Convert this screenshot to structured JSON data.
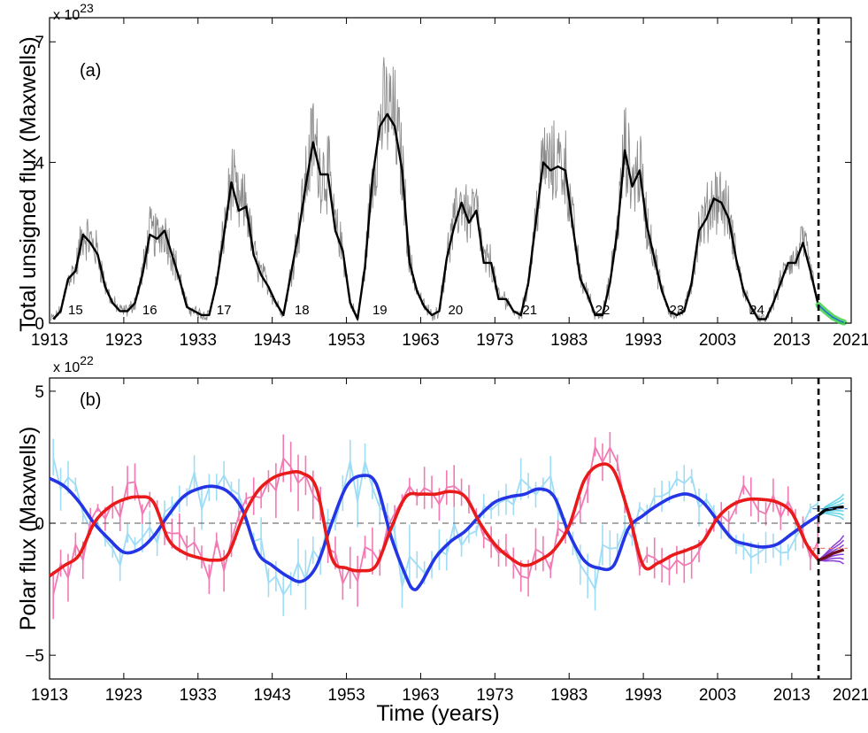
{
  "figure": {
    "xlabel": "Time (years)",
    "xticks": [
      "1913",
      "1923",
      "1933",
      "1943",
      "1953",
      "1963",
      "1973",
      "1983",
      "1993",
      "2003",
      "2013",
      "2021"
    ],
    "xlim": [
      1913,
      2021
    ],
    "divider_year": 2016.6
  },
  "chart_data": [
    {
      "type": "line",
      "panel_label": "(a)",
      "title": "",
      "xlabel": "",
      "ylabel": "Total unsigned flux (Maxwells)",
      "scale_base": "x 10",
      "scale_exp": "23",
      "ylim": [
        0,
        7.6
      ],
      "yticks": [
        "0",
        "4",
        "7"
      ],
      "ytick_values": [
        0,
        4,
        7
      ],
      "series": [
        {
          "name": "Smoothed total unsigned flux",
          "color": "#000000",
          "x": [
            1913.5,
            1914.5,
            1915.5,
            1916.5,
            1917.5,
            1918.5,
            1919.5,
            1920.5,
            1921.5,
            1922.5,
            1923.5,
            1924.5,
            1925.5,
            1926.5,
            1927.5,
            1928.5,
            1929.5,
            1930.5,
            1931.5,
            1932.5,
            1933.5,
            1934.5,
            1935.5,
            1936.5,
            1937.5,
            1938.5,
            1939.5,
            1940.5,
            1941.5,
            1942.5,
            1943.5,
            1944.5,
            1945.5,
            1946.5,
            1947.5,
            1948.5,
            1949.5,
            1950.5,
            1951.5,
            1952.5,
            1953.5,
            1954.5,
            1955.5,
            1956.5,
            1957.5,
            1958.5,
            1959.5,
            1960.5,
            1961.5,
            1962.5,
            1963.5,
            1964.5,
            1965.5,
            1966.5,
            1967.5,
            1968.5,
            1969.5,
            1970.5,
            1971.5,
            1972.5,
            1973.5,
            1974.5,
            1975.5,
            1976.5,
            1977.5,
            1978.5,
            1979.5,
            1980.5,
            1981.5,
            1982.5,
            1983.5,
            1984.5,
            1985.5,
            1986.5,
            1987.5,
            1988.5,
            1989.5,
            1990.5,
            1991.5,
            1992.5,
            1993.5,
            1994.5,
            1995.5,
            1996.5,
            1997.5,
            1998.5,
            1999.5,
            2000.5,
            2001.5,
            2002.5,
            2003.5,
            2004.5,
            2005.5,
            2006.5,
            2007.5,
            2008.5,
            2009.5,
            2010.5,
            2011.5,
            2012.5,
            2013.5,
            2014.5,
            2015.5,
            2016.5
          ],
          "y": [
            0.1,
            0.3,
            1.1,
            1.3,
            2.2,
            2.0,
            1.7,
            0.9,
            0.5,
            0.3,
            0.3,
            0.5,
            1.2,
            2.2,
            2.1,
            2.3,
            1.7,
            1.1,
            0.4,
            0.3,
            0.2,
            0.2,
            1.0,
            2.2,
            3.5,
            2.8,
            2.9,
            1.7,
            1.2,
            0.9,
            0.5,
            0.2,
            1.2,
            2.2,
            3.4,
            4.5,
            3.7,
            3.7,
            2.3,
            1.8,
            0.5,
            0.1,
            1.4,
            3.6,
            4.9,
            5.2,
            4.9,
            3.8,
            1.5,
            0.8,
            0.4,
            0.2,
            0.3,
            1.6,
            2.4,
            3.0,
            2.5,
            2.8,
            1.5,
            1.5,
            0.6,
            0.6,
            0.3,
            0.2,
            1.0,
            2.5,
            4.0,
            3.8,
            3.9,
            3.8,
            2.4,
            1.1,
            0.7,
            0.2,
            0.2,
            1.0,
            2.3,
            4.3,
            3.4,
            3.8,
            2.4,
            1.6,
            0.8,
            0.3,
            0.2,
            0.3,
            1.0,
            2.3,
            2.6,
            3.1,
            3.0,
            2.6,
            1.6,
            0.8,
            0.4,
            0.1,
            0.1,
            0.5,
            1.0,
            1.5,
            1.5,
            2.0,
            1.3,
            0.5
          ]
        },
        {
          "name": "Monthly total unsigned flux",
          "color": "#8c8c8c",
          "note": "noisy monthly values following the smoothed curve"
        },
        {
          "name": "Forecast",
          "color": "#3fd04a",
          "x": [
            2016.6,
            2017.5,
            2018.5,
            2019.5,
            2020.0
          ],
          "y": [
            0.45,
            0.3,
            0.15,
            0.05,
            0.02
          ]
        }
      ],
      "cycle_labels": [
        "15",
        "16",
        "17",
        "18",
        "19",
        "20",
        "21",
        "22",
        "23",
        "24"
      ],
      "cycle_label_years": [
        1916.5,
        1926.5,
        1936.5,
        1947.0,
        1957.5,
        1967.7,
        1977.7,
        1987.5,
        1997.5,
        2008.3
      ]
    },
    {
      "type": "line",
      "panel_label": "(b)",
      "title": "",
      "xlabel": "Time (years)",
      "ylabel": "Polar flux (Maxwells)",
      "scale_base": "x 10",
      "scale_exp": "22",
      "ylim": [
        -5.9,
        5.5
      ],
      "yticks": [
        "5",
        "0",
        "−5"
      ],
      "ytick_values": [
        5,
        0,
        -5
      ],
      "series": [
        {
          "name": "Northern polar flux (smoothed)",
          "color": "#2435e6",
          "x": [
            1913,
            1915,
            1917,
            1919,
            1921,
            1923,
            1925,
            1927,
            1929,
            1931,
            1933,
            1935,
            1937,
            1939,
            1941,
            1943,
            1945,
            1947,
            1949,
            1951,
            1953,
            1955,
            1957,
            1959,
            1961,
            1962,
            1963,
            1965,
            1967,
            1969,
            1971,
            1973,
            1975,
            1977,
            1979,
            1981,
            1983,
            1985,
            1987,
            1989,
            1991,
            1993,
            1995,
            1997,
            1999,
            2001,
            2003,
            2005,
            2007,
            2009,
            2011,
            2013,
            2015,
            2016.6
          ],
          "y": [
            1.7,
            1.4,
            0.8,
            0.0,
            -0.6,
            -1.1,
            -1.0,
            -0.5,
            0.3,
            1.0,
            1.3,
            1.4,
            1.2,
            0.5,
            -1.1,
            -1.6,
            -2.0,
            -2.2,
            -1.6,
            0.0,
            1.4,
            1.8,
            1.5,
            -0.5,
            -2.0,
            -2.5,
            -2.3,
            -1.3,
            -0.7,
            -0.3,
            0.3,
            0.8,
            1.0,
            1.1,
            1.3,
            1.0,
            -0.4,
            -1.4,
            -1.7,
            -1.6,
            -0.2,
            0.3,
            0.7,
            1.0,
            1.1,
            0.8,
            0.1,
            -0.6,
            -0.8,
            -0.9,
            -0.8,
            -0.4,
            0.0,
            0.3
          ]
        },
        {
          "name": "Southern polar flux (smoothed)",
          "color": "#e81a1a",
          "x": [
            1913,
            1915,
            1917,
            1919,
            1921,
            1923,
            1925,
            1927,
            1929,
            1931,
            1933,
            1935,
            1937,
            1939,
            1941,
            1943,
            1945,
            1947,
            1949,
            1951,
            1953,
            1955,
            1957,
            1959,
            1961,
            1963,
            1965,
            1967,
            1969,
            1971,
            1973,
            1975,
            1977,
            1979,
            1981,
            1983,
            1985,
            1987,
            1989,
            1991,
            1993,
            1995,
            1997,
            1999,
            2001,
            2003,
            2005,
            2007,
            2009,
            2011,
            2013,
            2015,
            2016.6
          ],
          "y": [
            -2.0,
            -1.6,
            -1.2,
            0.0,
            0.6,
            0.9,
            1.0,
            0.8,
            -0.6,
            -1.1,
            -1.3,
            -1.4,
            -1.2,
            0.2,
            1.2,
            1.7,
            1.9,
            1.9,
            1.3,
            -1.3,
            -1.7,
            -1.8,
            -1.6,
            -0.2,
            1.0,
            1.1,
            1.1,
            1.2,
            1.0,
            0.0,
            -0.8,
            -1.3,
            -1.6,
            -1.4,
            -1.0,
            -0.1,
            1.6,
            2.2,
            2.0,
            0.4,
            -1.6,
            -1.5,
            -1.2,
            -1.0,
            -0.7,
            0.2,
            0.7,
            0.9,
            0.9,
            0.8,
            0.4,
            -0.8,
            -1.4
          ]
        },
        {
          "name": "Northern polar flux (annual, error bars)",
          "color": "#9fdcf5",
          "note": "yearly values with vertical error bars"
        },
        {
          "name": "Southern polar flux (annual, error bars)",
          "color": "#f27ab4",
          "note": "yearly values with vertical error bars"
        },
        {
          "name": "Forecast north",
          "color": "#000000",
          "x": [
            2016.6,
            2017.5,
            2018.5,
            2019.5,
            2020.0
          ],
          "y": [
            0.3,
            0.5,
            0.55,
            0.6,
            0.62
          ]
        },
        {
          "name": "Forecast south",
          "color": "#6e0f1f",
          "x": [
            2016.6,
            2017.5,
            2018.5,
            2019.5,
            2020.0
          ],
          "y": [
            -1.4,
            -1.3,
            -1.15,
            -1.05,
            -1.0
          ]
        }
      ],
      "zero_line": true
    }
  ]
}
